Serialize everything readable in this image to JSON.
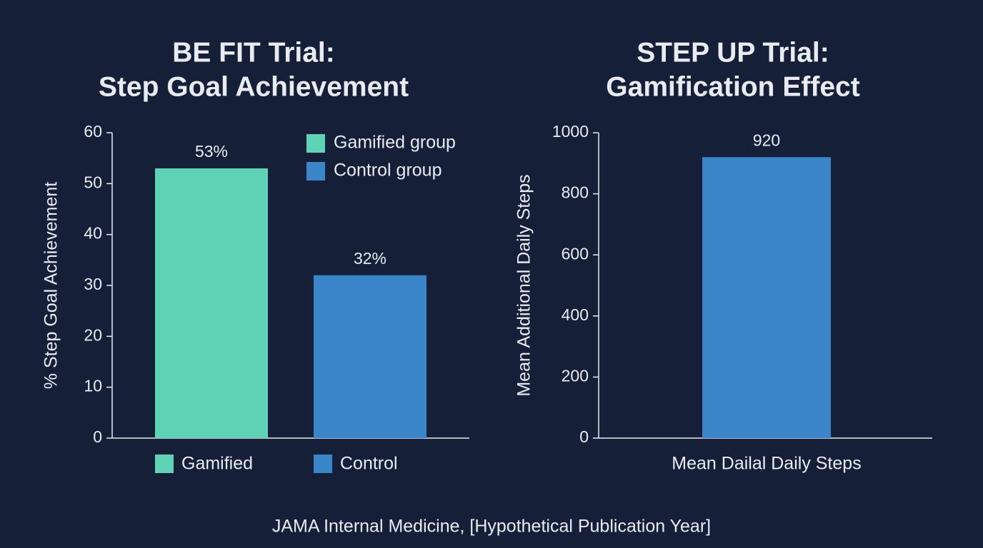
{
  "chart_data": [
    {
      "type": "bar",
      "title": [
        "BE FIT Trial:",
        "Step Goal Achievement"
      ],
      "ylabel": "% Step Goal Achievement",
      "categories": [
        "Gamified",
        "Control"
      ],
      "values": [
        53,
        32
      ],
      "value_labels": [
        "53%",
        "32%"
      ],
      "colors": [
        "#5fd3b5",
        "#3a86c8"
      ],
      "xtick_swatches": true,
      "legend": {
        "entries": [
          "Gamified group",
          "Control group"
        ],
        "position": "upper right"
      },
      "ylim": [
        0,
        60
      ],
      "yticks": [
        0,
        10,
        20,
        30,
        40,
        50,
        60
      ]
    },
    {
      "type": "bar",
      "title": [
        "STEP UP Trial:",
        "Gamification Effect"
      ],
      "ylabel": "Mean Additional Daily Steps",
      "categories": [
        "Mean Dailal Daily Steps"
      ],
      "values": [
        920
      ],
      "colors": [
        "#3a86c8"
      ],
      "xtick_swatches": false,
      "ylim": [
        0,
        1000
      ],
      "yticks": [
        0,
        200,
        400,
        600,
        800,
        1000
      ]
    }
  ],
  "source": "JAMA Internal Medicine, [Hypothetical Publication Year]"
}
